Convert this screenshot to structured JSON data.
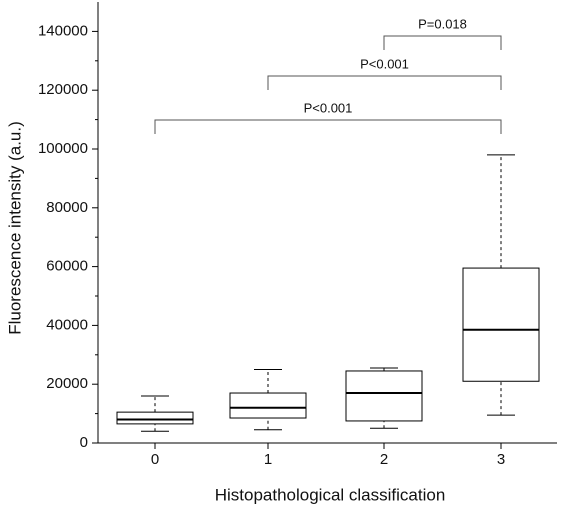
{
  "chart_data": {
    "type": "box",
    "x_label": "Histopathological classification",
    "y_label": "Fluorescence intensity (a.u.)",
    "categories": [
      "0",
      "1",
      "2",
      "3"
    ],
    "boxes": [
      {
        "min": 4000,
        "q1": 6500,
        "median": 8000,
        "q3": 10500,
        "max": 16000
      },
      {
        "min": 4500,
        "q1": 8500,
        "median": 12000,
        "q3": 17000,
        "max": 25000
      },
      {
        "min": 5000,
        "q1": 7500,
        "median": 17000,
        "q3": 24500,
        "max": 25500
      },
      {
        "min": 9500,
        "q1": 21000,
        "median": 38500,
        "q3": 59500,
        "max": 98000
      }
    ],
    "color": "#000000",
    "ylim": [
      0,
      150000
    ],
    "yticks": [
      0,
      20000,
      40000,
      60000,
      80000,
      100000,
      120000,
      140000
    ],
    "annotations": [
      {
        "text": "P=0.018",
        "categories": [
          "2",
          "3"
        ]
      },
      {
        "text": "P<0.001",
        "categories": [
          "1",
          "3"
        ]
      },
      {
        "text": "P<0.001",
        "categories": [
          "0",
          "3"
        ]
      }
    ]
  }
}
